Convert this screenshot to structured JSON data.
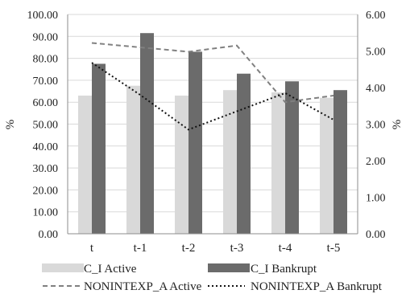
{
  "chart_data": {
    "type": "bar",
    "categories": [
      "t",
      "t-1",
      "t-2",
      "t-3",
      "t-4",
      "t-5"
    ],
    "ylabel_left": "%",
    "ylabel_right": "%",
    "ylim_left": [
      0,
      100
    ],
    "ylim_right": [
      0,
      6
    ],
    "yticks_left": [
      "0.00",
      "10.00",
      "20.00",
      "30.00",
      "40.00",
      "50.00",
      "60.00",
      "70.00",
      "80.00",
      "90.00",
      "100.00"
    ],
    "yticks_right": [
      "0.00",
      "1.00",
      "2.00",
      "3.00",
      "4.00",
      "5.00",
      "6.00"
    ],
    "grid": true,
    "legend_position": "bottom",
    "bar_series": [
      {
        "name": "C_I Active",
        "axis": "left",
        "color": "#d9d9d9",
        "values": [
          63.0,
          67.5,
          63.0,
          65.5,
          64.5,
          62.0
        ]
      },
      {
        "name": "C_I Bankrupt",
        "axis": "left",
        "color": "#6b6b6b",
        "values": [
          77.5,
          91.5,
          83.0,
          73.0,
          69.5,
          65.5
        ]
      }
    ],
    "line_series": [
      {
        "name": "NONINTEXP_A Active",
        "axis": "right",
        "color": "#808080",
        "style": "dashed",
        "values": [
          5.22,
          5.1,
          4.98,
          5.15,
          3.6,
          3.78
        ]
      },
      {
        "name": "NONINTEXP_A Bankrupt",
        "axis": "right",
        "color": "#111111",
        "style": "dotted",
        "values": [
          4.68,
          3.8,
          2.85,
          3.35,
          3.85,
          3.12
        ]
      }
    ]
  }
}
